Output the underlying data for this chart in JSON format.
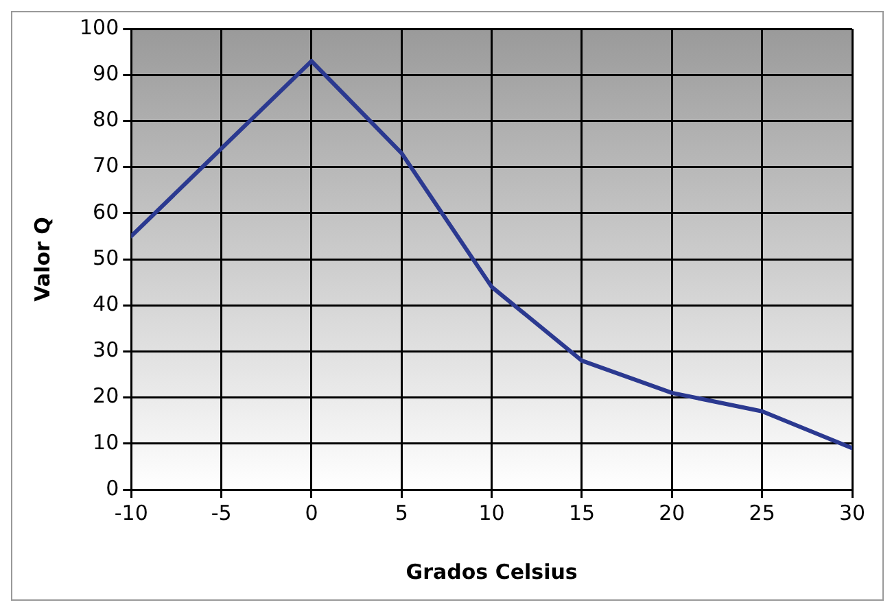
{
  "chart_data": {
    "type": "line",
    "xlabel": "Grados Celsius",
    "ylabel": "Valor Q",
    "x": [
      -10,
      -5,
      0,
      5,
      10,
      15,
      20,
      25,
      30
    ],
    "series": [
      {
        "color": "#2b3990",
        "values": [
          55,
          74,
          93,
          73,
          44,
          28,
          21,
          17,
          9
        ]
      }
    ],
    "xlim": [
      -10,
      30
    ],
    "xticks": [
      -10,
      -5,
      0,
      5,
      10,
      15,
      20,
      25,
      30
    ],
    "ylim": [
      0,
      100
    ],
    "yticks": [
      0,
      10,
      20,
      30,
      40,
      50,
      60,
      70,
      80,
      90,
      100
    ],
    "grid": true,
    "legend": false,
    "marker": "none",
    "line_style": "solid"
  }
}
